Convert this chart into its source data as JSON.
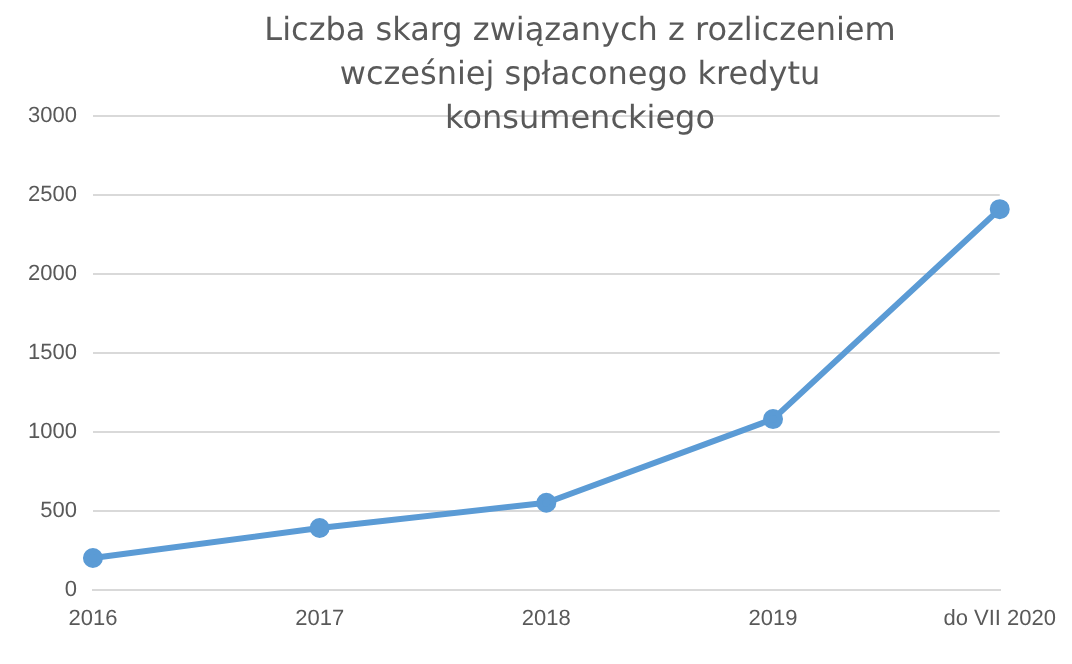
{
  "chart_data": {
    "type": "line",
    "title": "Liczba skarg związanych z rozliczeniem wcześniej spłaconego kredytu konsumenckiego",
    "categories": [
      "2016",
      "2017",
      "2018",
      "2019",
      "do VII 2020"
    ],
    "series": [
      {
        "color": "#5b9bd5",
        "values": [
          200,
          390,
          550,
          1080,
          2410
        ]
      }
    ],
    "ylim": [
      0,
      3000
    ],
    "yticks": [
      0,
      500,
      1000,
      1500,
      2000,
      2500,
      3000
    ],
    "grid": "y",
    "legend": false,
    "marker": "circle",
    "line_style": "solid"
  }
}
